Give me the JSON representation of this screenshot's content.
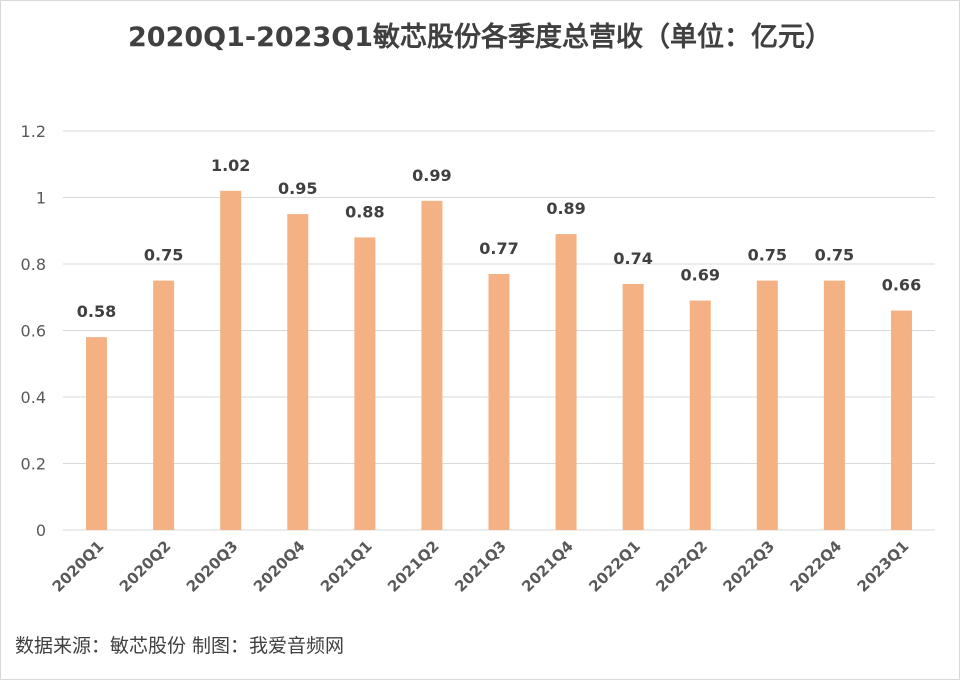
{
  "chart_data": {
    "type": "bar",
    "title": "2020Q1-2023Q1敏芯股份各季度总营收（单位：亿元）",
    "categories": [
      "2020Q1",
      "2020Q2",
      "2020Q3",
      "2020Q4",
      "2021Q1",
      "2021Q2",
      "2021Q3",
      "2021Q4",
      "2022Q1",
      "2022Q2",
      "2022Q3",
      "2022Q4",
      "2023Q1"
    ],
    "values": [
      0.58,
      0.75,
      1.02,
      0.95,
      0.88,
      0.99,
      0.77,
      0.89,
      0.74,
      0.69,
      0.75,
      0.75,
      0.66
    ],
    "value_labels": [
      "0.58",
      "0.75",
      "1.02",
      "0.95",
      "0.88",
      "0.99",
      "0.77",
      "0.89",
      "0.74",
      "0.69",
      "0.75",
      "0.75",
      "0.66"
    ],
    "ylim": [
      0,
      1.2
    ],
    "yticks": [
      0,
      0.2,
      0.4,
      0.6,
      0.8,
      1,
      1.2
    ],
    "ytick_labels": [
      "0",
      "0.2",
      "0.4",
      "0.6",
      "0.8",
      "1",
      "1.2"
    ],
    "xlabel": "",
    "ylabel": "",
    "grid": true,
    "legend": "none",
    "bar_color": "#F4B183",
    "grid_color": "#d9d9d9"
  },
  "footer": {
    "source": "数据来源：敏芯股份 制图：我爱音频网"
  }
}
